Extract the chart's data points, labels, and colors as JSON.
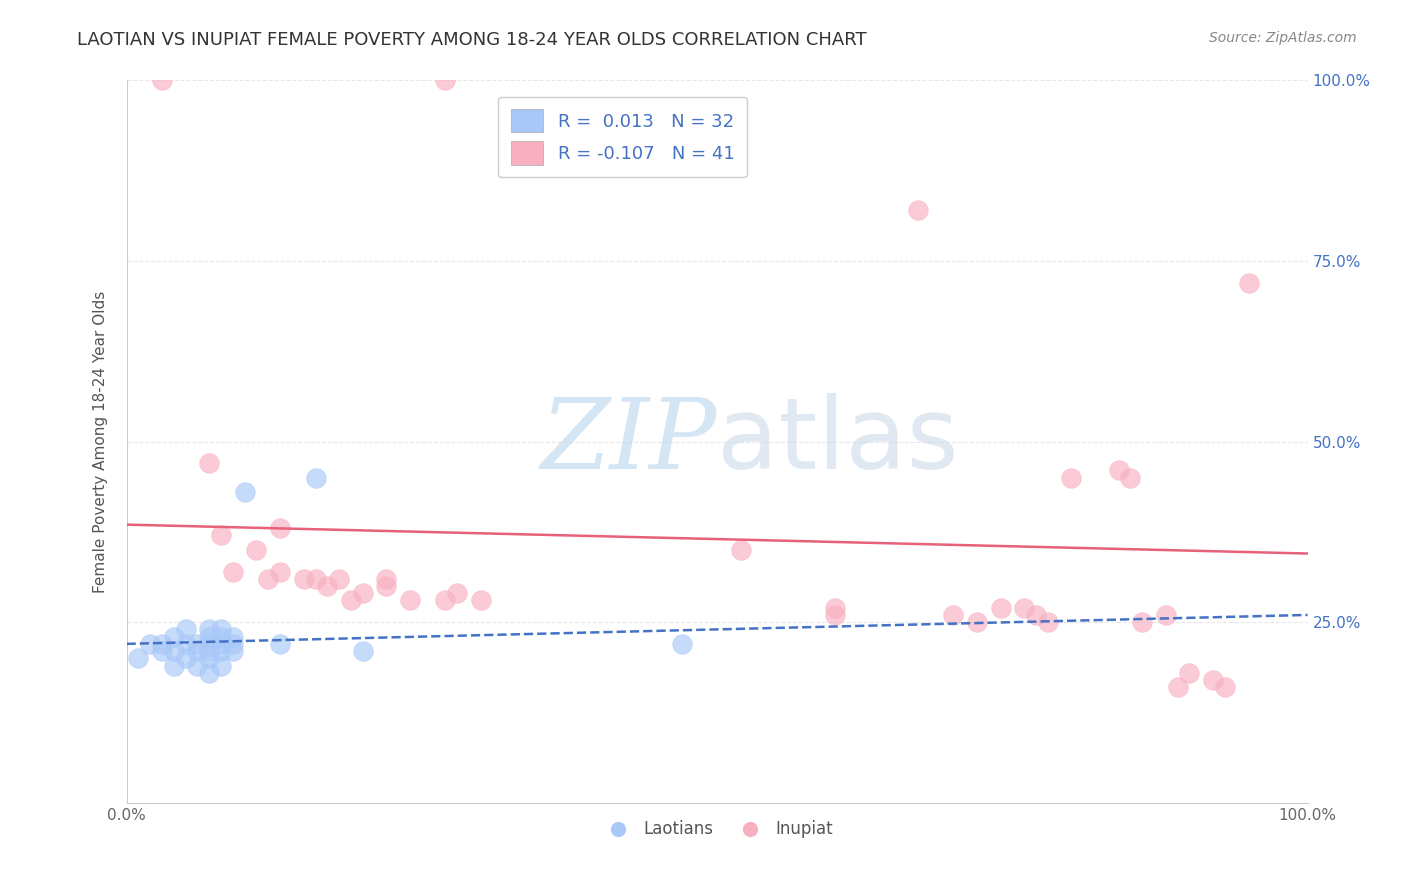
{
  "title": "LAOTIAN VS INUPIAT FEMALE POVERTY AMONG 18-24 YEAR OLDS CORRELATION CHART",
  "source": "Source: ZipAtlas.com",
  "ylabel": "Female Poverty Among 18-24 Year Olds",
  "xlim": [
    0,
    1
  ],
  "ylim": [
    0,
    1
  ],
  "xticklabels": [
    "0.0%",
    "",
    "",
    "",
    "100.0%"
  ],
  "yticklabels_right": [
    "25.0%",
    "50.0%",
    "75.0%",
    "100.0%"
  ],
  "laotian_color": "#a8c8f8",
  "inupiat_color": "#f8b0c0",
  "laotian_line_color": "#4472c4",
  "inupiat_line_color": "#e8607a",
  "laotian_R": "0.013",
  "laotian_N": "32",
  "inupiat_R": "-0.107",
  "inupiat_N": "41",
  "watermark_text": "ZIPatlas",
  "laotian_scatter_x": [
    0.01,
    0.02,
    0.03,
    0.03,
    0.04,
    0.04,
    0.04,
    0.05,
    0.05,
    0.05,
    0.06,
    0.06,
    0.06,
    0.07,
    0.07,
    0.07,
    0.07,
    0.07,
    0.07,
    0.08,
    0.08,
    0.08,
    0.08,
    0.08,
    0.09,
    0.09,
    0.09,
    0.1,
    0.13,
    0.16,
    0.47,
    0.2
  ],
  "laotian_scatter_y": [
    0.2,
    0.22,
    0.21,
    0.22,
    0.19,
    0.21,
    0.23,
    0.2,
    0.22,
    0.24,
    0.19,
    0.21,
    0.22,
    0.18,
    0.2,
    0.21,
    0.22,
    0.23,
    0.24,
    0.19,
    0.21,
    0.22,
    0.23,
    0.24,
    0.21,
    0.22,
    0.23,
    0.43,
    0.22,
    0.45,
    0.22,
    0.21
  ],
  "inupiat_scatter_x": [
    0.03,
    0.27,
    0.07,
    0.08,
    0.09,
    0.11,
    0.12,
    0.13,
    0.13,
    0.15,
    0.16,
    0.17,
    0.18,
    0.19,
    0.2,
    0.22,
    0.22,
    0.24,
    0.27,
    0.28,
    0.3,
    0.52,
    0.6,
    0.6,
    0.67,
    0.7,
    0.72,
    0.74,
    0.76,
    0.77,
    0.78,
    0.8,
    0.84,
    0.85,
    0.86,
    0.88,
    0.89,
    0.9,
    0.92,
    0.93,
    0.95
  ],
  "inupiat_scatter_y": [
    1.0,
    1.0,
    0.47,
    0.37,
    0.32,
    0.35,
    0.31,
    0.32,
    0.38,
    0.31,
    0.31,
    0.3,
    0.31,
    0.28,
    0.29,
    0.3,
    0.31,
    0.28,
    0.28,
    0.29,
    0.28,
    0.35,
    0.26,
    0.27,
    0.82,
    0.26,
    0.25,
    0.27,
    0.27,
    0.26,
    0.25,
    0.45,
    0.46,
    0.45,
    0.25,
    0.26,
    0.16,
    0.18,
    0.17,
    0.16,
    0.72
  ],
  "inupiat_line_start_y": 0.385,
  "inupiat_line_end_y": 0.345,
  "laotian_line_start_y": 0.22,
  "laotian_line_end_y": 0.26,
  "background_color": "#ffffff",
  "grid_color": "#e8e8e8",
  "title_fontsize": 13,
  "axis_label_fontsize": 11,
  "tick_label_fontsize": 11
}
